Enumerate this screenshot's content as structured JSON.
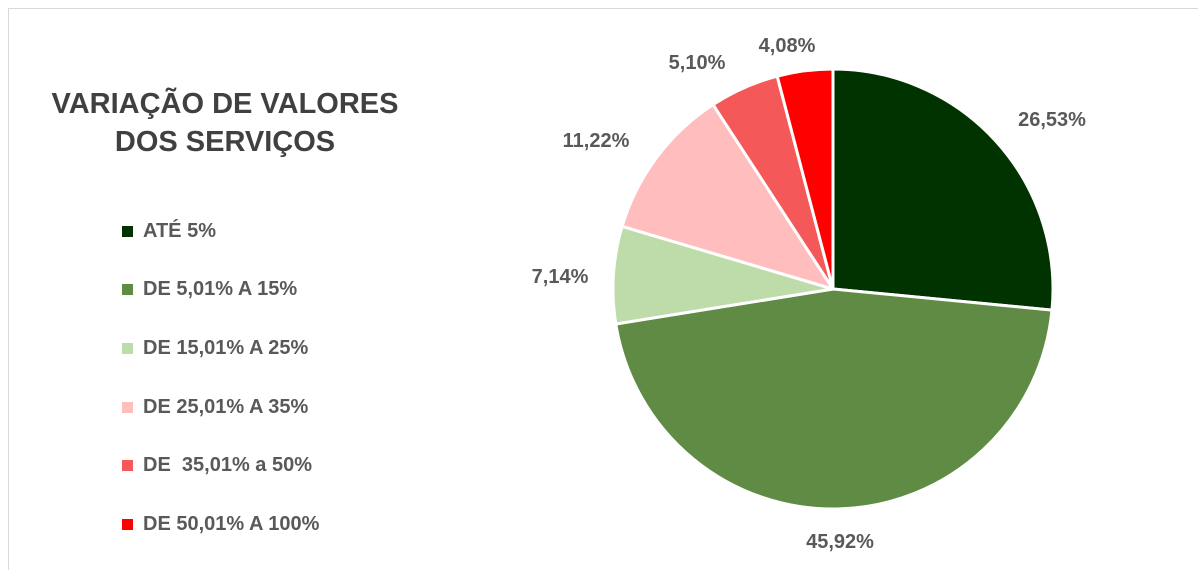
{
  "chart_data": {
    "type": "pie",
    "title": "VARIAÇÃO DE VALORES\nDOS SERVIÇOS",
    "legend_position": "left",
    "categories": [
      "ATÉ 5%",
      "DE 5,01% A 15%",
      "DE 15,01% A 25%",
      "DE 25,01% A 35%",
      "DE  35,01% a 50%",
      "DE 50,01% A 100%"
    ],
    "values": [
      26.53,
      45.92,
      7.14,
      11.22,
      5.1,
      4.08
    ],
    "data_labels": [
      "26,53%",
      "45,92%",
      "7,14%",
      "11,22%",
      "5,10%",
      "4,08%"
    ],
    "colors": [
      "#003300",
      "#5f8b45",
      "#bedcaa",
      "#ffbdbd",
      "#f45858",
      "#ff0000"
    ]
  }
}
